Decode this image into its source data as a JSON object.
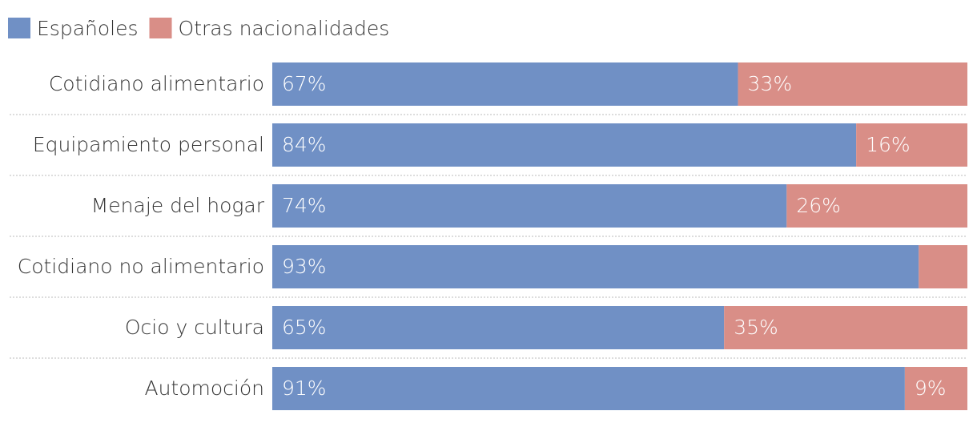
{
  "chart_data": {
    "type": "stacked-bar-horizontal",
    "categories": [
      "Cotidiano alimentario",
      "Equipamiento personal",
      "Menaje del hogar",
      "Cotidiano no alimentario",
      "Ocio y cultura",
      "Automoción"
    ],
    "series": [
      {
        "name": "Españoles",
        "color": "#7090c5",
        "values": [
          67,
          84,
          74,
          93,
          65,
          91
        ],
        "value_labels": [
          "67%",
          "84%",
          "74%",
          "93%",
          "65%",
          "91%"
        ]
      },
      {
        "name": "Otras nacionalidades",
        "color": "#d98e87",
        "values": [
          33,
          16,
          26,
          7,
          35,
          9
        ],
        "value_labels": [
          "33%",
          "16%",
          "26%",
          null,
          "35%",
          "9%"
        ]
      }
    ],
    "xlim": [
      0,
      100
    ]
  }
}
